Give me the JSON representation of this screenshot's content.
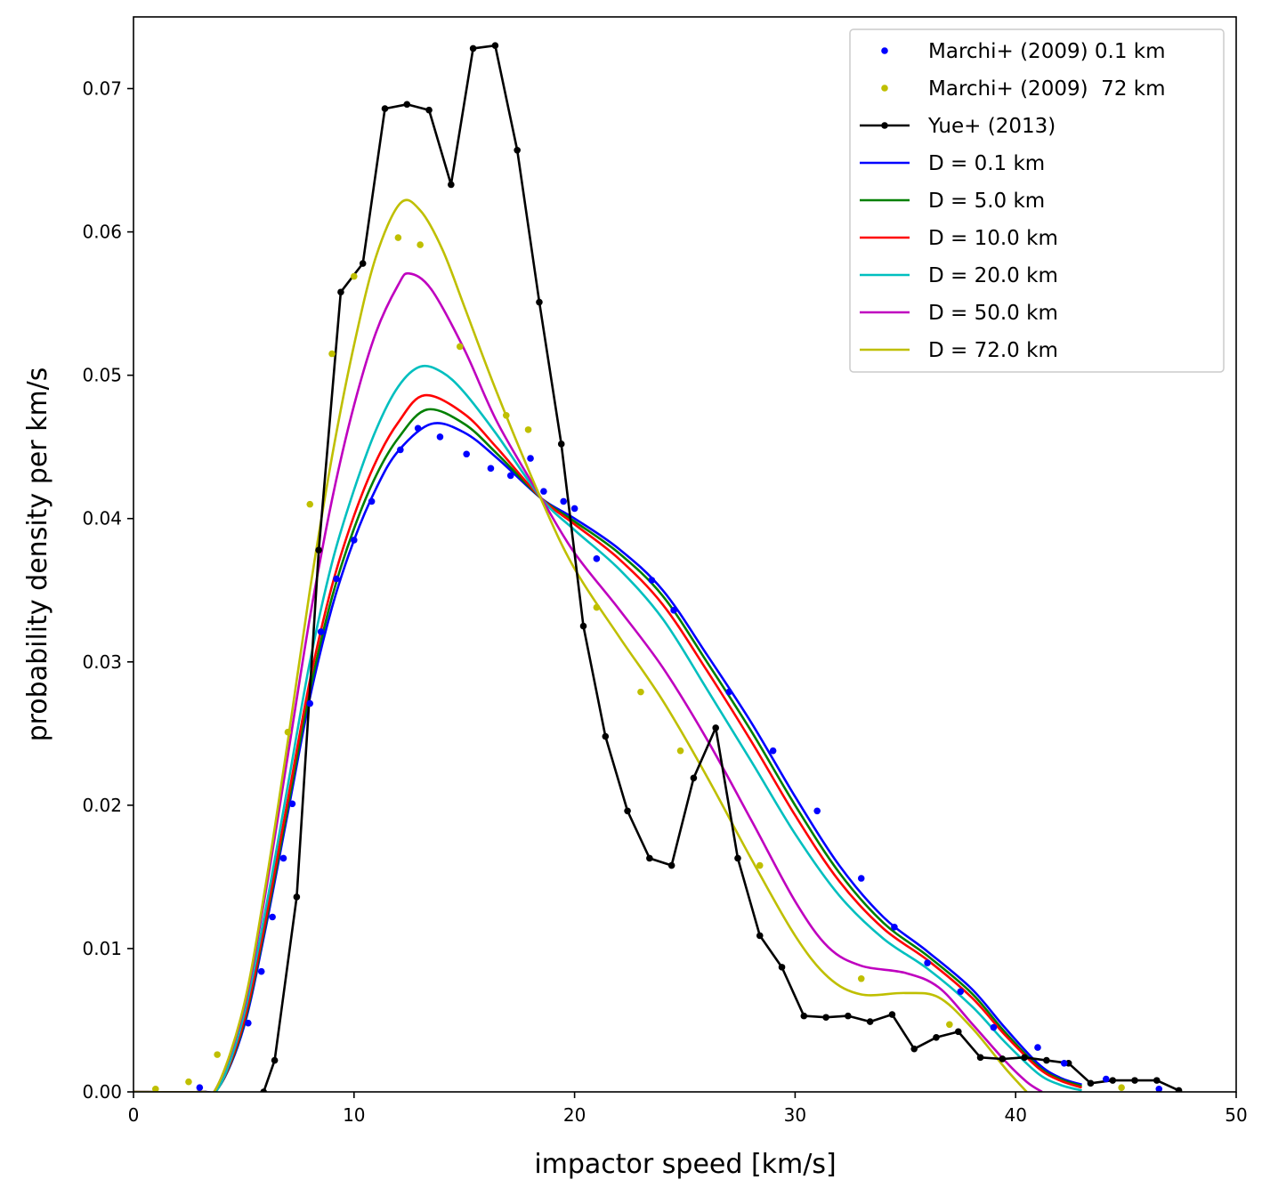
{
  "chart_data": {
    "type": "line",
    "title": "",
    "xlabel": "impactor speed [km/s]",
    "ylabel": "probability density per km/s",
    "xlim": [
      0,
      50
    ],
    "ylim": [
      0,
      0.075
    ],
    "xticks": [
      0,
      10,
      20,
      30,
      40,
      50
    ],
    "xtick_labels": [
      "0",
      "10",
      "20",
      "30",
      "40",
      "50"
    ],
    "yticks": [
      0,
      0.01,
      0.02,
      0.03,
      0.04,
      0.05,
      0.06,
      0.07
    ],
    "ytick_labels": [
      "0.00",
      "0.01",
      "0.02",
      "0.03",
      "0.04",
      "0.05",
      "0.06",
      "0.07"
    ],
    "grid": false,
    "legend_position": "top-right",
    "series": [
      {
        "name": "Marchi+ (2009) 0.1 km",
        "kind": "dots",
        "color": "#0000ff",
        "x": [
          3.0,
          5.2,
          5.8,
          6.3,
          6.8,
          7.2,
          8.0,
          8.5,
          9.2,
          10.0,
          10.8,
          12.1,
          12.9,
          13.9,
          15.1,
          16.2,
          17.1,
          18.0,
          18.6,
          19.5,
          20.0,
          21.0,
          23.5,
          24.5,
          27.0,
          29.0,
          31.0,
          33.0,
          34.5,
          36.0,
          37.5,
          39.0,
          41.0,
          42.2,
          44.1,
          46.5
        ],
        "y": [
          0.0003,
          0.0048,
          0.0084,
          0.0122,
          0.0163,
          0.0201,
          0.0271,
          0.0321,
          0.0358,
          0.0385,
          0.0412,
          0.0448,
          0.0463,
          0.0457,
          0.0445,
          0.0435,
          0.043,
          0.0442,
          0.0419,
          0.0412,
          0.0407,
          0.0372,
          0.0357,
          0.0336,
          0.0279,
          0.0238,
          0.0196,
          0.0149,
          0.0115,
          0.009,
          0.007,
          0.0045,
          0.0031,
          0.002,
          0.0009,
          0.0002
        ]
      },
      {
        "name": "Marchi+ (2009)  72 km",
        "kind": "dots",
        "color": "#bfbf00",
        "x": [
          1.0,
          2.5,
          3.8,
          7.0,
          8.0,
          9.0,
          10.0,
          12.0,
          13.0,
          14.8,
          16.9,
          17.9,
          21.0,
          23.0,
          24.8,
          28.4,
          33.0,
          37.0,
          44.8
        ],
        "y": [
          0.0002,
          0.0007,
          0.0026,
          0.0251,
          0.041,
          0.0515,
          0.0569,
          0.0596,
          0.0591,
          0.052,
          0.0472,
          0.0462,
          0.0338,
          0.0279,
          0.0238,
          0.0158,
          0.0079,
          0.0047,
          0.0003
        ]
      },
      {
        "name": "Yue+ (2013)",
        "kind": "line-dots",
        "color": "#000000",
        "x": [
          5.9,
          6.4,
          7.4,
          8.4,
          9.4,
          10.4,
          11.4,
          12.4,
          13.4,
          14.4,
          15.4,
          16.4,
          17.4,
          18.4,
          19.4,
          20.4,
          21.4,
          22.4,
          23.4,
          24.4,
          25.4,
          26.4,
          27.4,
          28.4,
          29.4,
          30.4,
          31.4,
          32.4,
          33.4,
          34.4,
          35.4,
          36.4,
          37.4,
          38.4,
          39.4,
          40.4,
          41.4,
          42.4,
          43.4,
          44.4,
          45.4,
          46.4,
          47.4
        ],
        "y": [
          0.0,
          0.0022,
          0.0136,
          0.0378,
          0.0558,
          0.0578,
          0.0686,
          0.0689,
          0.0685,
          0.0633,
          0.0728,
          0.073,
          0.0657,
          0.0551,
          0.0452,
          0.0325,
          0.0248,
          0.0196,
          0.0163,
          0.0158,
          0.0219,
          0.0254,
          0.0163,
          0.0109,
          0.0087,
          0.0053,
          0.0052,
          0.0053,
          0.0049,
          0.0054,
          0.003,
          0.0038,
          0.0042,
          0.0024,
          0.0023,
          0.0024,
          0.0022,
          0.002,
          0.0006,
          0.0008,
          0.0008,
          0.0008,
          0.0001
        ]
      },
      {
        "name": "D = 0.1 km",
        "kind": "line",
        "color": "#0000ff",
        "x": [
          0,
          3.0,
          3.9,
          5.0,
          6.0,
          7.0,
          8.0,
          9.0,
          10.0,
          11.0,
          12.0,
          13.5,
          15.0,
          16.5,
          18.5,
          20.0,
          22.0,
          24.0,
          26.0,
          28.0,
          30.0,
          32.0,
          34.0,
          36.0,
          38.0,
          39.5,
          41.0,
          42.0,
          43.0
        ],
        "y": [
          0,
          0.0,
          0.0004,
          0.0045,
          0.0115,
          0.0195,
          0.0275,
          0.0338,
          0.0385,
          0.0421,
          0.0447,
          0.0466,
          0.046,
          0.0442,
          0.0414,
          0.04,
          0.0379,
          0.035,
          0.0305,
          0.0258,
          0.0206,
          0.0158,
          0.0122,
          0.0098,
          0.0072,
          0.0045,
          0.002,
          0.001,
          0.0005
        ]
      },
      {
        "name": "D = 5.0 km",
        "kind": "line",
        "color": "#008000",
        "x": [
          0,
          3.0,
          3.9,
          5.0,
          6.0,
          7.0,
          8.0,
          9.0,
          10.0,
          11.0,
          12.0,
          13.3,
          15.0,
          16.5,
          18.5,
          20.0,
          22.0,
          24.0,
          26.0,
          28.0,
          30.0,
          32.0,
          34.0,
          36.0,
          38.0,
          39.5,
          41.0,
          42.0,
          43.0
        ],
        "y": [
          0,
          0.0,
          0.0004,
          0.0047,
          0.0118,
          0.0199,
          0.028,
          0.0345,
          0.0393,
          0.043,
          0.0456,
          0.0476,
          0.0466,
          0.0445,
          0.0414,
          0.0398,
          0.0376,
          0.0346,
          0.03,
          0.0252,
          0.02,
          0.0153,
          0.0118,
          0.0095,
          0.0069,
          0.0042,
          0.0018,
          0.0009,
          0.0004
        ]
      },
      {
        "name": "D = 10.0 km",
        "kind": "line",
        "color": "#ff0000",
        "x": [
          0,
          3.0,
          3.9,
          5.0,
          6.0,
          7.0,
          8.0,
          9.0,
          10.0,
          11.0,
          12.0,
          13.2,
          15.0,
          16.5,
          18.5,
          20.0,
          22.0,
          24.0,
          26.0,
          28.0,
          30.0,
          32.0,
          34.0,
          36.0,
          38.0,
          39.5,
          41.0,
          42.0,
          43.0
        ],
        "y": [
          0,
          0.0,
          0.0004,
          0.0049,
          0.0121,
          0.0204,
          0.0287,
          0.0353,
          0.0402,
          0.044,
          0.0467,
          0.0486,
          0.0473,
          0.0449,
          0.0414,
          0.0396,
          0.0372,
          0.034,
          0.0294,
          0.0245,
          0.0193,
          0.0147,
          0.0114,
          0.0092,
          0.0066,
          0.004,
          0.0017,
          0.0008,
          0.0003
        ]
      },
      {
        "name": "D = 20.0 km",
        "kind": "line",
        "color": "#00bfbf",
        "x": [
          0,
          3.0,
          3.9,
          5.0,
          6.0,
          7.0,
          8.0,
          9.0,
          10.0,
          11.0,
          12.0,
          13.0,
          14.0,
          15.0,
          16.5,
          18.5,
          20.0,
          22.0,
          24.0,
          26.0,
          28.0,
          30.0,
          32.0,
          34.0,
          36.0,
          38.0,
          39.5,
          41.0,
          42.0,
          43.0
        ],
        "y": [
          0,
          0.0,
          0.0004,
          0.0053,
          0.0128,
          0.0214,
          0.03,
          0.0369,
          0.042,
          0.0462,
          0.0492,
          0.0506,
          0.0502,
          0.0488,
          0.0458,
          0.0414,
          0.0392,
          0.0365,
          0.033,
          0.0281,
          0.0231,
          0.018,
          0.0137,
          0.0107,
          0.0086,
          0.006,
          0.0035,
          0.0013,
          0.0005,
          0.0001
        ]
      },
      {
        "name": "D = 50.0 km",
        "kind": "line",
        "color": "#bf00bf",
        "x": [
          0,
          3.0,
          3.8,
          5.0,
          6.0,
          7.0,
          8.0,
          9.0,
          10.0,
          11.0,
          12.0,
          12.5,
          13.5,
          15.0,
          16.5,
          18.5,
          20.0,
          22.0,
          24.0,
          26.0,
          28.0,
          30.0,
          31.5,
          33.0,
          35.0,
          36.5,
          38.0,
          39.5,
          40.5,
          41.2
        ],
        "y": [
          0,
          0.0,
          0.0004,
          0.0058,
          0.014,
          0.0235,
          0.0331,
          0.0413,
          0.0479,
          0.053,
          0.0563,
          0.0571,
          0.056,
          0.0518,
          0.0467,
          0.0414,
          0.0376,
          0.0337,
          0.0296,
          0.0246,
          0.019,
          0.0133,
          0.0101,
          0.0088,
          0.0083,
          0.0073,
          0.0048,
          0.0022,
          0.0007,
          0.0
        ]
      },
      {
        "name": "D = 72.0 km",
        "kind": "line",
        "color": "#bfbf00",
        "x": [
          0,
          3.0,
          3.8,
          5.0,
          6.0,
          7.0,
          8.0,
          9.0,
          10.0,
          11.0,
          12.1,
          13.0,
          14.0,
          15.0,
          16.5,
          18.5,
          20.0,
          22.0,
          24.0,
          26.0,
          28.0,
          30.0,
          31.5,
          33.0,
          35.0,
          36.5,
          38.0,
          39.5,
          40.5
        ],
        "y": [
          0,
          0.0,
          0.0004,
          0.006,
          0.0145,
          0.0245,
          0.035,
          0.0443,
          0.0521,
          0.0583,
          0.062,
          0.0615,
          0.0588,
          0.0548,
          0.0487,
          0.0413,
          0.0365,
          0.0318,
          0.0273,
          0.022,
          0.0163,
          0.0109,
          0.008,
          0.0068,
          0.0069,
          0.0066,
          0.0045,
          0.0017,
          0.0
        ]
      }
    ]
  }
}
